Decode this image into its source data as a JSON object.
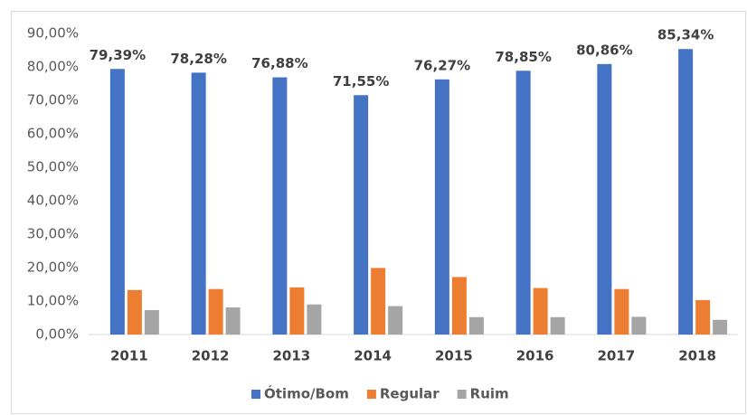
{
  "chart_data": {
    "type": "bar",
    "categories": [
      "2011",
      "2012",
      "2013",
      "2014",
      "2015",
      "2016",
      "2017",
      "2018"
    ],
    "series": [
      {
        "name": "Ótimo/Bom",
        "color": "#4472c4",
        "values": [
          79.39,
          78.28,
          76.88,
          71.55,
          76.27,
          78.85,
          80.86,
          85.34
        ],
        "value_labels": [
          "79,39%",
          "78,28%",
          "76,88%",
          "71,55%",
          "76,27%",
          "78,85%",
          "80,86%",
          "85,34%"
        ]
      },
      {
        "name": "Regular",
        "color": "#ed7d31",
        "values": [
          13.3,
          13.6,
          14.1,
          19.9,
          17.2,
          13.9,
          13.6,
          10.3
        ]
      },
      {
        "name": "Ruim",
        "color": "#a5a5a5",
        "values": [
          7.3,
          8.1,
          9.0,
          8.5,
          5.2,
          5.2,
          5.3,
          4.4
        ]
      }
    ],
    "ylim": [
      0,
      90
    ],
    "yticks": [
      {
        "value": 0,
        "label": "0,00%"
      },
      {
        "value": 10,
        "label": "10,00%"
      },
      {
        "value": 20,
        "label": "20,00%"
      },
      {
        "value": 30,
        "label": "30,00%"
      },
      {
        "value": 40,
        "label": "40,00%"
      },
      {
        "value": 50,
        "label": "50,00%"
      },
      {
        "value": 60,
        "label": "60,00%"
      },
      {
        "value": 70,
        "label": "70,00%"
      },
      {
        "value": 80,
        "label": "80,00%"
      },
      {
        "value": 90,
        "label": "90,00%"
      }
    ],
    "grid": false,
    "legend": "bottom"
  }
}
